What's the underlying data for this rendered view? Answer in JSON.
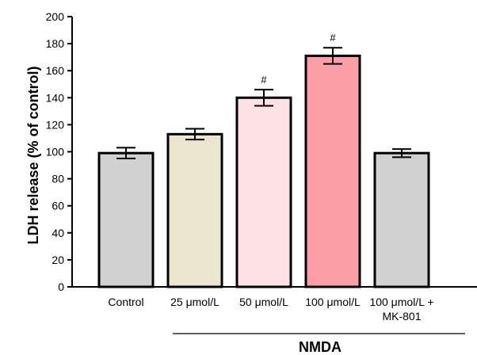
{
  "chart_data": {
    "type": "bar",
    "categories": [
      "Control",
      "25 μmol/L",
      "50 μmol/L",
      "100 μmol/L",
      "100 μmol/L +"
    ],
    "category_sublabels": [
      "",
      "",
      "",
      "",
      "MK-801"
    ],
    "values": [
      99,
      113,
      140,
      171,
      99
    ],
    "errors": [
      4,
      4,
      6,
      6,
      3
    ],
    "annotations": [
      "",
      "",
      "#",
      "#",
      ""
    ],
    "colors": [
      "#d1d1d1",
      "#ebe6cd",
      "#fde1e4",
      "#fc9ea5",
      "#d1d1d1"
    ],
    "ylabel": "LDH release (% of control)",
    "xlabel": "",
    "ylim": [
      0,
      200
    ],
    "yticks": [
      0,
      20,
      40,
      60,
      80,
      100,
      120,
      140,
      160,
      180,
      200
    ],
    "group_label": "NMDA",
    "grid": false
  }
}
